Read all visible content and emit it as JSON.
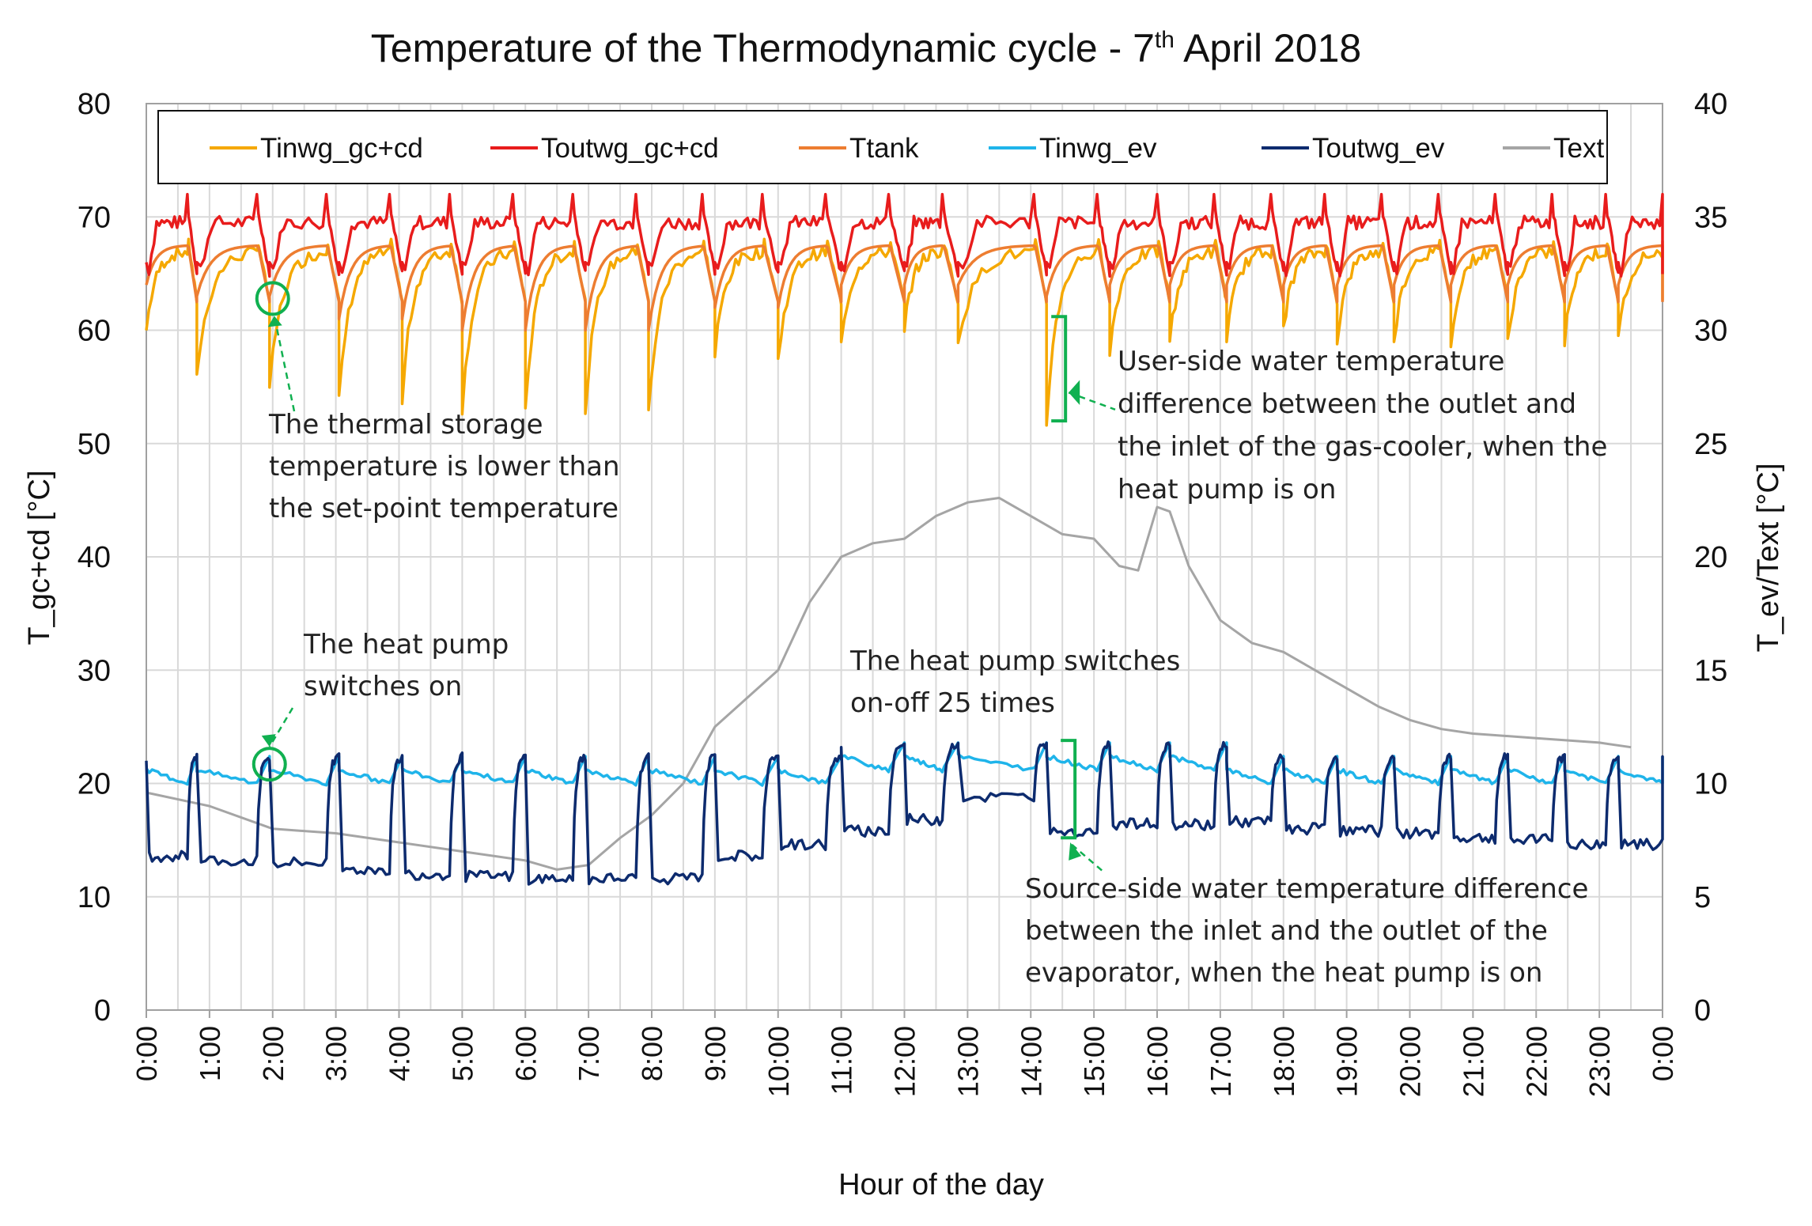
{
  "chart_data": {
    "type": "line",
    "title_main": "Temperature of the Thermodynamic cycle - 7",
    "title_sup": "th",
    "title_end": " April 2018",
    "xlabel": "Hour of the day",
    "ylabel_left": "T_gc+cd [°C]",
    "ylabel_right": "T_ev/Text [°C]",
    "ylim_left": [
      0,
      80
    ],
    "ylim_right": [
      0,
      40
    ],
    "yticks_left": [
      "0",
      "10",
      "20",
      "30",
      "40",
      "50",
      "60",
      "70",
      "80"
    ],
    "yticks_right": [
      "0",
      "5",
      "10",
      "15",
      "20",
      "25",
      "30",
      "35",
      "40"
    ],
    "xlim_hours": [
      0,
      24
    ],
    "xticks": [
      "0:00",
      "1:00",
      "2:00",
      "3:00",
      "4:00",
      "5:00",
      "6:00",
      "7:00",
      "8:00",
      "9:00",
      "10:00",
      "11:00",
      "12:00",
      "13:00",
      "14:00",
      "15:00",
      "16:00",
      "17:00",
      "18:00",
      "19:00",
      "20:00",
      "21:00",
      "22:00",
      "23:00",
      "0:00"
    ],
    "grid": true,
    "legend_position": "top",
    "series": [
      {
        "name": "Tinwg_gc+cd",
        "axis": "left",
        "color": "#f5a800"
      },
      {
        "name": "Toutwg_gc+cd",
        "axis": "left",
        "color": "#e81c1c"
      },
      {
        "name": "Ttank",
        "axis": "left",
        "color": "#ed7d31"
      },
      {
        "name": "Tinwg_ev",
        "axis": "right",
        "color": "#1fb4ea"
      },
      {
        "name": "Toutwg_ev",
        "axis": "right",
        "color": "#0d2b6e"
      },
      {
        "name": "Text",
        "axis": "right",
        "color": "#a5a5a5"
      }
    ],
    "cycles_hours": [
      0.0,
      0.8,
      1.95,
      3.05,
      4.05,
      5.0,
      6.0,
      6.95,
      7.95,
      9.0,
      10.0,
      11.0,
      12.0,
      12.85,
      14.25,
      15.25,
      16.2,
      17.1,
      18.0,
      18.85,
      19.75,
      20.65,
      21.55,
      22.45,
      23.3
    ],
    "cycles_off_hours": [
      0.65,
      1.75,
      2.85,
      3.85,
      4.8,
      5.8,
      6.75,
      7.75,
      8.8,
      9.75,
      10.75,
      11.75,
      12.6,
      14.05,
      15.05,
      16.0,
      16.9,
      17.8,
      18.65,
      19.55,
      20.45,
      21.35,
      22.25,
      23.1,
      24.0
    ],
    "tinwg_gc_min_left": [
      60,
      56,
      55,
      54,
      54,
      53,
      53,
      53,
      53,
      58,
      57,
      59,
      60,
      59,
      52,
      58,
      59,
      59,
      60,
      59,
      59,
      59,
      59,
      59,
      59
    ],
    "ttank_min_left": [
      64,
      63,
      63,
      61,
      61,
      60,
      60,
      60,
      60,
      62,
      62,
      64,
      64,
      64,
      63,
      64,
      64,
      64,
      64,
      64,
      64,
      64,
      64,
      64,
      64
    ],
    "tout_ev_on_right": [
      6.8,
      6.6,
      6.5,
      6.2,
      6.0,
      5.9,
      5.8,
      5.8,
      5.8,
      6.8,
      7.3,
      7.9,
      8.4,
      9.4,
      7.9,
      8.2,
      8.2,
      8.3,
      8.0,
      7.9,
      7.8,
      7.6,
      7.5,
      7.3,
      7.3
    ],
    "text_points_right": [
      [
        0,
        9.6
      ],
      [
        1,
        9.0
      ],
      [
        2,
        8.0
      ],
      [
        3,
        7.8
      ],
      [
        4,
        7.4
      ],
      [
        5,
        7.0
      ],
      [
        6,
        6.6
      ],
      [
        6.5,
        6.2
      ],
      [
        7,
        6.4
      ],
      [
        7.5,
        7.6
      ],
      [
        8,
        8.6
      ],
      [
        8.5,
        10.0
      ],
      [
        9,
        12.5
      ],
      [
        9.6,
        14.0
      ],
      [
        10,
        15.0
      ],
      [
        10.5,
        18.0
      ],
      [
        11,
        20.0
      ],
      [
        11.5,
        20.6
      ],
      [
        12,
        20.8
      ],
      [
        12.5,
        21.8
      ],
      [
        13,
        22.4
      ],
      [
        13.5,
        22.6
      ],
      [
        14,
        21.8
      ],
      [
        14.5,
        21.0
      ],
      [
        15,
        20.8
      ],
      [
        15.4,
        19.6
      ],
      [
        15.7,
        19.4
      ],
      [
        16,
        22.2
      ],
      [
        16.2,
        22.0
      ],
      [
        16.5,
        19.6
      ],
      [
        17,
        17.2
      ],
      [
        17.5,
        16.2
      ],
      [
        18,
        15.8
      ],
      [
        18.5,
        15.0
      ],
      [
        19,
        14.2
      ],
      [
        19.5,
        13.4
      ],
      [
        20,
        12.8
      ],
      [
        20.5,
        12.4
      ],
      [
        21,
        12.2
      ],
      [
        22,
        12.0
      ],
      [
        23,
        11.8
      ],
      [
        23.5,
        11.6
      ]
    ],
    "annotations": {
      "storage_lines": [
        "The thermal storage",
        "temperature is lower than",
        "the set-point temperature"
      ],
      "switch_on_lines": [
        "The heat pump",
        "switches on"
      ],
      "switch_count_lines": [
        "The heat pump switches",
        "on-off 25 times"
      ],
      "user_side_lines": [
        "User-side water temperature",
        "difference between the outlet and",
        "the inlet of the gas-cooler, when the",
        "heat pump is on"
      ],
      "source_side_lines": [
        "Source-side water temperature difference",
        "between the inlet and the outlet of the",
        "evaporator, when the heat pump is on"
      ]
    },
    "annotation_color": "#10b050"
  }
}
